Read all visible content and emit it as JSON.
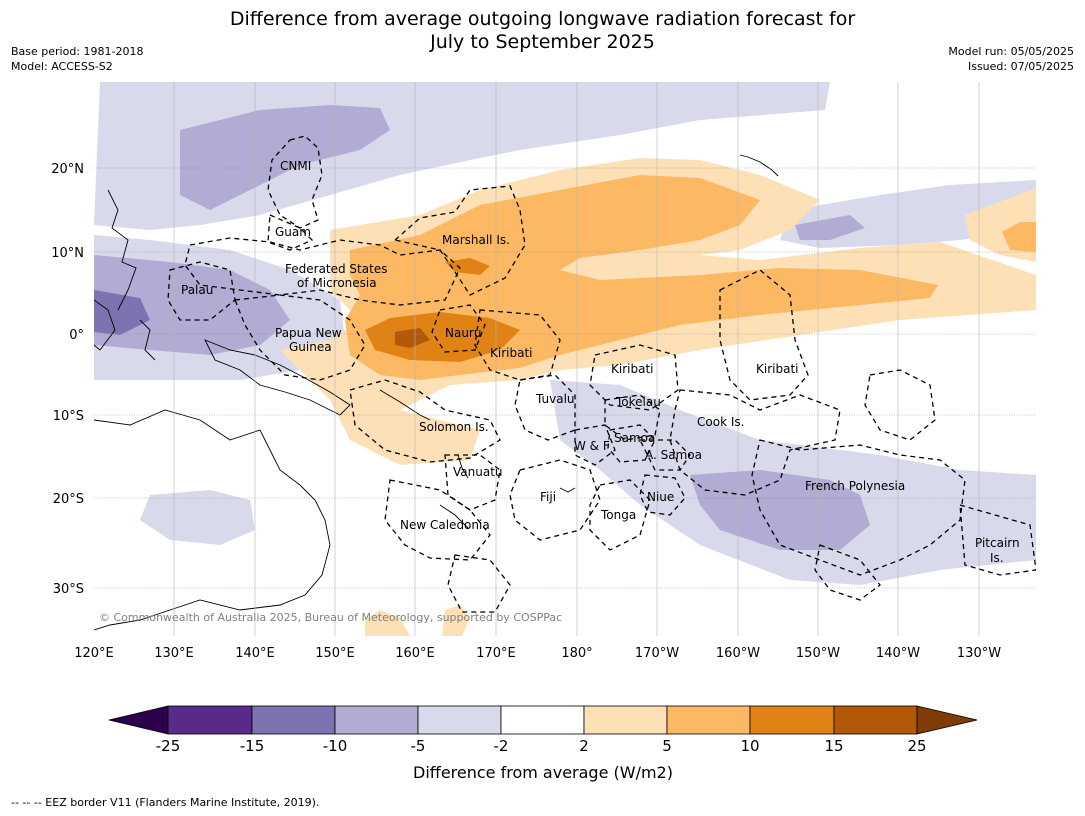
{
  "title_line1": "Difference from average outgoing longwave radiation forecast for",
  "title_line2": "July to September 2025",
  "base_period": "Base period: 1981-2018",
  "model": "Model: ACCESS-S2",
  "model_run": "Model run: 05/05/2025",
  "issued": "Issued: 07/05/2025",
  "copyright": "© Commonwealth of Australia 2025, Bureau of Meteorology, supported by COSPPac",
  "footnote": "--  --  -- EEZ border V11 (Flanders Marine Institute, 2019).",
  "lon_labels": [
    "120°E",
    "130°E",
    "140°E",
    "150°E",
    "160°E",
    "170°E",
    "180°",
    "170°W",
    "160°W",
    "150°W",
    "140°W",
    "130°W"
  ],
  "lat_labels": [
    "20°N",
    "10°N",
    "0°",
    "10°S",
    "20°S",
    "30°S"
  ],
  "places": {
    "cnmi": "CNMI",
    "guam": "Guam",
    "marshall": "Marshall Is.",
    "fsm1": "Federated States",
    "fsm2": "of Micronesia",
    "palau": "Palau",
    "png1": "Papua New",
    "png2": "Guinea",
    "nauru": "Nauru",
    "kiribati_w": "Kiribati",
    "kiribati_c": "Kiribati",
    "kiribati_e": "Kiribati",
    "tuvalu": "Tuvalu",
    "tokelau": "Tokelau",
    "cook": "Cook Is.",
    "solomon": "Solomon Is.",
    "samoa": "Samoa",
    "wf": "W & F",
    "asamoa": "A. Samoa",
    "vanuatu": "Vanuatu",
    "fiji": "Fiji",
    "niue": "Niue",
    "tonga": "Tonga",
    "fp": "French Polynesia",
    "newcal": "New Caledonia",
    "pitcairn1": "Pitcairn",
    "pitcairn2": "Is."
  },
  "colorbar": {
    "label": "Difference from average (W/m2)",
    "ticks": [
      "-25",
      "-15",
      "-10",
      "-5",
      "-2",
      "2",
      "5",
      "10",
      "15",
      "25"
    ],
    "colors": [
      "#2d004b",
      "#5a2a8a",
      "#7f72b0",
      "#b2abd3",
      "#d8d9eb",
      "#ffffff",
      "#fde0b6",
      "#fdb863",
      "#e08214",
      "#b35806",
      "#7f3b08"
    ]
  }
}
